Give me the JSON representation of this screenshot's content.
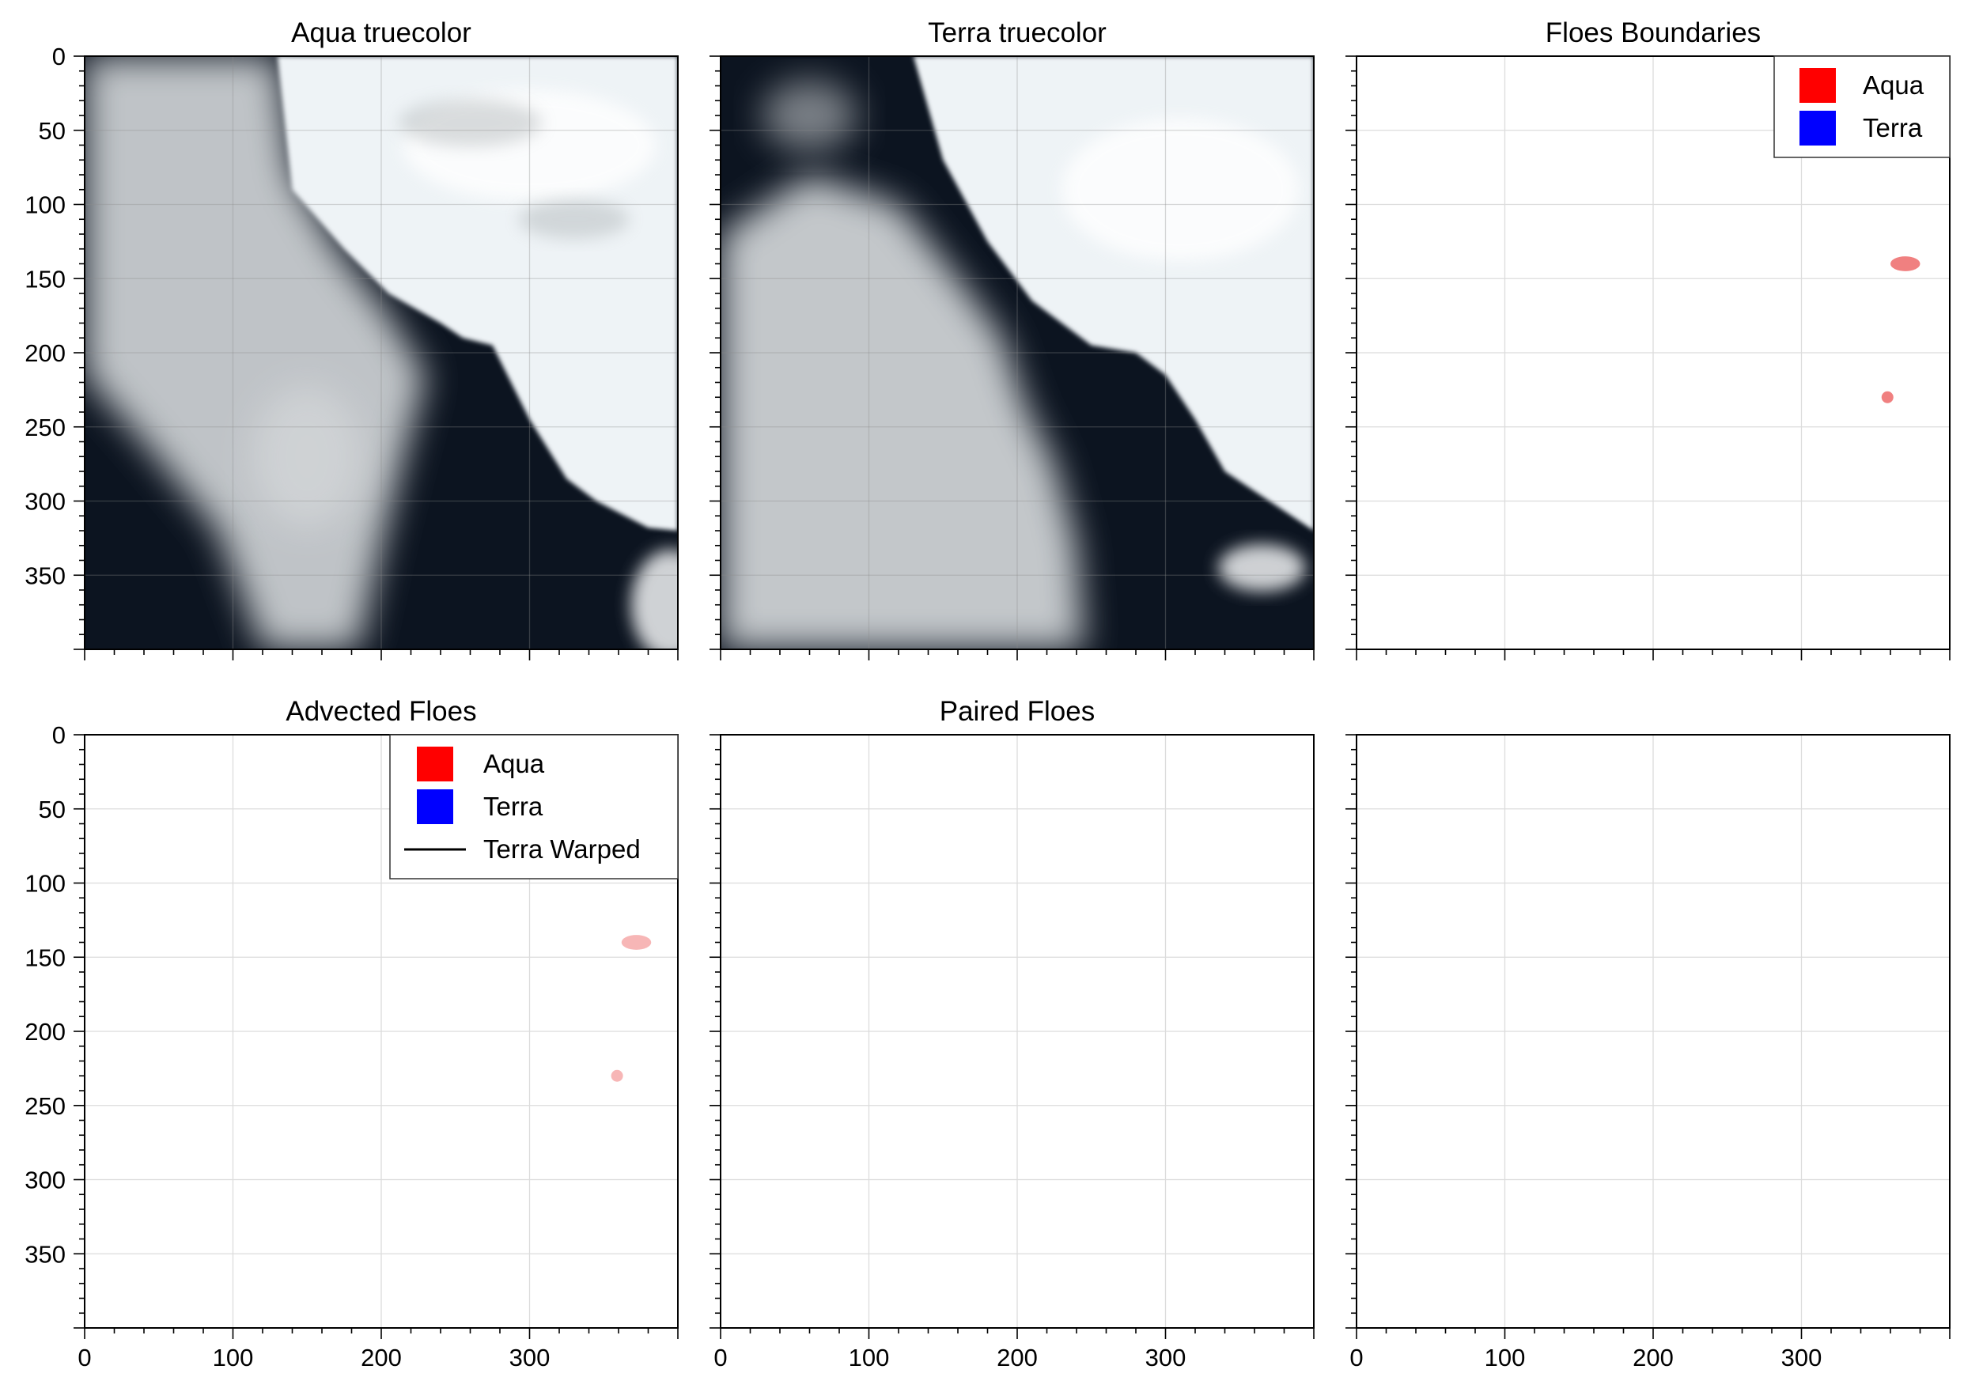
{
  "figure": {
    "layout": "2x3 grid of image panels"
  },
  "colors": {
    "aqua": "#ff0000",
    "terra": "#0000ff",
    "terra_warped": "#000000",
    "floe_fill_aqua": "#f08080",
    "floe_fill_advected": "#f7b6b6",
    "ocean": "#0c1420",
    "ice": "#eef3f6",
    "cloud": "#c9cdd0",
    "grid": "#dcdcdc"
  },
  "chart_data": [
    {
      "type": "image",
      "title": "Aqua truecolor",
      "xlim": [
        0,
        400
      ],
      "ylim": [
        400,
        0
      ],
      "xticks": [
        0,
        100,
        200,
        300
      ],
      "yticks": [
        0,
        50,
        100,
        150,
        200,
        250,
        300,
        350
      ],
      "show_xticklabels": false,
      "show_yticklabels": true,
      "grid": true,
      "image": "aqua-truecolor-satellite"
    },
    {
      "type": "image",
      "title": "Terra truecolor",
      "xlim": [
        0,
        400
      ],
      "ylim": [
        400,
        0
      ],
      "xticks": [
        0,
        100,
        200,
        300
      ],
      "yticks": [
        0,
        50,
        100,
        150,
        200,
        250,
        300,
        350
      ],
      "show_xticklabels": false,
      "show_yticklabels": false,
      "grid": true,
      "image": "terra-truecolor-satellite"
    },
    {
      "type": "image",
      "title": "Floes Boundaries",
      "xlim": [
        0,
        400
      ],
      "ylim": [
        400,
        0
      ],
      "xticks": [
        0,
        100,
        200,
        300
      ],
      "yticks": [
        0,
        50,
        100,
        150,
        200,
        250,
        300,
        350
      ],
      "show_xticklabels": false,
      "show_yticklabels": false,
      "grid": true,
      "legend": {
        "position": "top-right",
        "entries": [
          {
            "label": "Aqua",
            "kind": "patch",
            "color": "#ff0000"
          },
          {
            "label": "Terra",
            "kind": "patch",
            "color": "#0000ff"
          }
        ]
      },
      "floes": [
        {
          "x": 370,
          "y": 140,
          "rx": 10,
          "ry": 5,
          "color": "#f08080"
        },
        {
          "x": 358,
          "y": 230,
          "rx": 4,
          "ry": 4,
          "color": "#f08080"
        }
      ]
    },
    {
      "type": "image",
      "title": "Advected Floes",
      "xlim": [
        0,
        400
      ],
      "ylim": [
        400,
        0
      ],
      "xticks": [
        0,
        100,
        200,
        300
      ],
      "yticks": [
        0,
        50,
        100,
        150,
        200,
        250,
        300,
        350
      ],
      "show_xticklabels": true,
      "show_yticklabels": true,
      "grid": true,
      "legend": {
        "position": "top-right",
        "entries": [
          {
            "label": "Aqua",
            "kind": "patch",
            "color": "#ff0000"
          },
          {
            "label": "Terra",
            "kind": "patch",
            "color": "#0000ff"
          },
          {
            "label": "Terra Warped",
            "kind": "line",
            "color": "#000000"
          }
        ]
      },
      "floes": [
        {
          "x": 372,
          "y": 140,
          "rx": 10,
          "ry": 5,
          "color": "#f7b6b6"
        },
        {
          "x": 359,
          "y": 230,
          "rx": 4,
          "ry": 4,
          "color": "#f7b6b6"
        }
      ]
    },
    {
      "type": "image",
      "title": "Paired Floes",
      "xlim": [
        0,
        400
      ],
      "ylim": [
        400,
        0
      ],
      "xticks": [
        0,
        100,
        200,
        300
      ],
      "yticks": [
        0,
        50,
        100,
        150,
        200,
        250,
        300,
        350
      ],
      "show_xticklabels": true,
      "show_yticklabels": false,
      "grid": true
    },
    {
      "type": "image",
      "title": "",
      "xlim": [
        0,
        400
      ],
      "ylim": [
        400,
        0
      ],
      "xticks": [
        0,
        100,
        200,
        300
      ],
      "yticks": [
        0,
        50,
        100,
        150,
        200,
        250,
        300,
        350
      ],
      "show_xticklabels": true,
      "show_yticklabels": false,
      "grid": true
    }
  ]
}
